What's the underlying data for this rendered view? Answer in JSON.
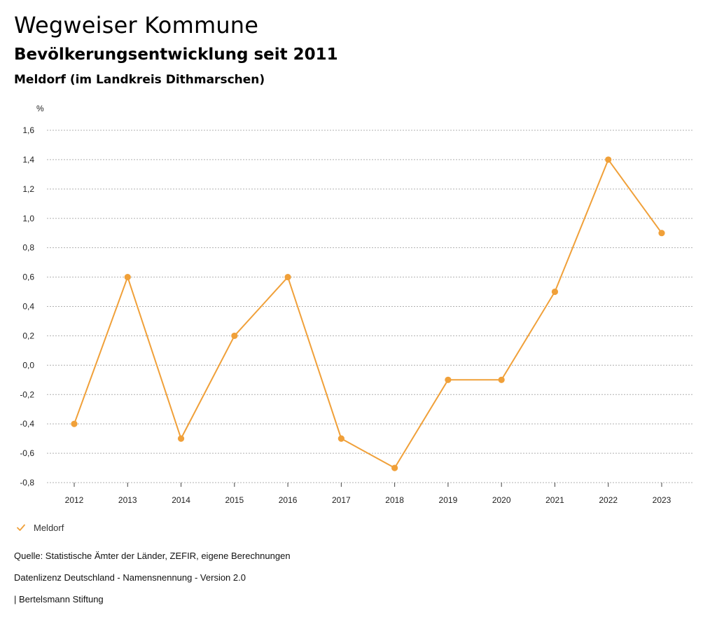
{
  "header": {
    "title": "Wegweiser Kommune",
    "subtitle": "Bevölkerungsentwicklung seit 2011",
    "region": "Meldorf (im Landkreis Dithmarschen)"
  },
  "legend": {
    "label": "Meldorf"
  },
  "footer": {
    "source": "Quelle: Statistische Ämter der Länder, ZEFIR, eigene Berechnungen",
    "license": "Datenlizenz Deutschland - Namensnennung - Version 2.0",
    "publisher": "| Bertelsmann Stiftung"
  },
  "colors": {
    "series": "#F0A039",
    "grid": "#b0b0b0",
    "axis": "#444444"
  },
  "chart_data": {
    "type": "line",
    "title": "Bevölkerungsentwicklung seit 2011",
    "ylabel": "%",
    "xlabel": "",
    "ylim": [
      -0.8,
      1.6
    ],
    "yticks": [
      1.6,
      1.4,
      1.2,
      1.0,
      0.8,
      0.6,
      0.4,
      0.2,
      0.0,
      -0.2,
      -0.4,
      -0.6,
      -0.8
    ],
    "ytick_labels": [
      "1,6",
      "1,4",
      "1,2",
      "1,0",
      "0,8",
      "0,6",
      "0,4",
      "0,2",
      "0,0",
      "-0,2",
      "-0,4",
      "-0,6",
      "-0,8"
    ],
    "categories": [
      "2012",
      "2013",
      "2014",
      "2015",
      "2016",
      "2017",
      "2018",
      "2019",
      "2020",
      "2021",
      "2022",
      "2023"
    ],
    "series": [
      {
        "name": "Meldorf",
        "values": [
          -0.4,
          0.6,
          -0.5,
          0.2,
          0.6,
          -0.5,
          -0.7,
          -0.1,
          -0.1,
          0.5,
          1.4,
          0.9
        ]
      }
    ],
    "grid": true,
    "legend_position": "bottom-left"
  }
}
